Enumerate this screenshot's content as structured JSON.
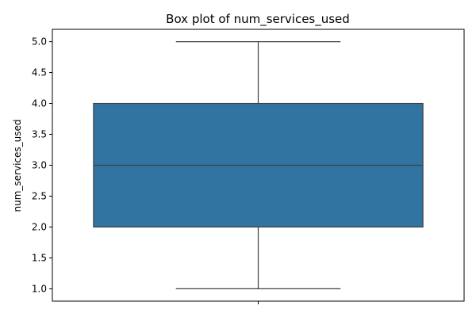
{
  "chart_data": {
    "type": "box",
    "title": "Box plot of num_services_used",
    "xlabel": "",
    "ylabel": "num_services_used",
    "ylim": [
      0.8,
      5.2
    ],
    "yticks": [
      1.0,
      1.5,
      2.0,
      2.5,
      3.0,
      3.5,
      4.0,
      4.5,
      5.0
    ],
    "ytick_labels": [
      "1.0",
      "1.5",
      "2.0",
      "2.5",
      "3.0",
      "3.5",
      "4.0",
      "4.5",
      "5.0"
    ],
    "grid": false,
    "boxes": [
      {
        "min": 1.0,
        "q1": 2.0,
        "median": 3.0,
        "q3": 4.0,
        "max": 5.0,
        "color": "#3274a1"
      }
    ]
  }
}
